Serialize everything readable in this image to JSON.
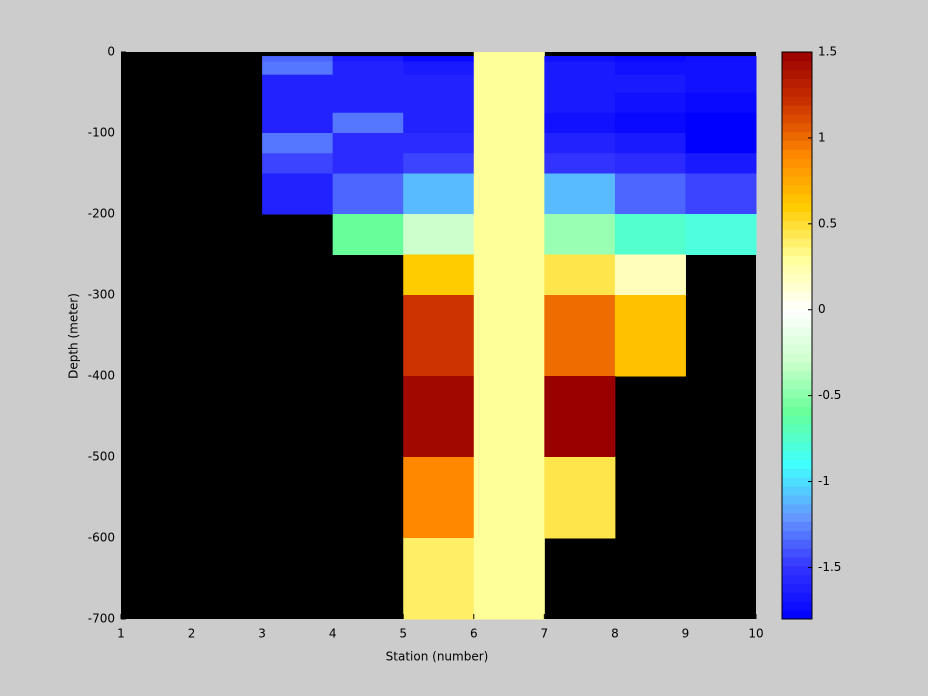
{
  "chart_data": {
    "type": "heatmap",
    "xlabel": "Station (number)",
    "ylabel": "Depth (meter)",
    "x_edges": [
      1,
      2,
      3,
      4,
      5,
      6,
      7,
      8,
      9,
      10
    ],
    "y_edges": [
      0,
      -5,
      -12,
      -28,
      -50,
      -75,
      -100,
      -125,
      -150,
      -200,
      -250,
      -300,
      -400,
      -500,
      -600,
      -700
    ],
    "z": [
      [
        null,
        null,
        null,
        null,
        null,
        0.3,
        null,
        null,
        null
      ],
      [
        null,
        null,
        -1.35,
        -1.65,
        -1.75,
        0.3,
        -1.7,
        -1.75,
        -1.7
      ],
      [
        null,
        null,
        -1.3,
        -1.6,
        -1.65,
        0.3,
        -1.65,
        -1.7,
        -1.7
      ],
      [
        null,
        null,
        -1.6,
        -1.6,
        -1.6,
        0.3,
        -1.65,
        -1.65,
        -1.7
      ],
      [
        null,
        null,
        -1.6,
        -1.6,
        -1.6,
        0.3,
        -1.65,
        -1.7,
        -1.75
      ],
      [
        null,
        null,
        -1.6,
        -1.3,
        -1.6,
        0.3,
        -1.7,
        -1.75,
        -1.8
      ],
      [
        null,
        null,
        -1.3,
        -1.55,
        -1.55,
        0.3,
        -1.6,
        -1.65,
        -1.8
      ],
      [
        null,
        null,
        -1.45,
        -1.55,
        -1.45,
        0.3,
        -1.5,
        -1.55,
        -1.65
      ],
      [
        null,
        null,
        -1.6,
        -1.35,
        -1.1,
        0.3,
        -1.1,
        -1.35,
        -1.45
      ],
      [
        null,
        null,
        null,
        -0.6,
        -0.3,
        0.3,
        -0.45,
        -0.75,
        -0.8
      ],
      [
        null,
        null,
        null,
        null,
        0.6,
        0.3,
        0.45,
        0.2,
        null
      ],
      [
        null,
        null,
        null,
        null,
        1.2,
        0.3,
        1.0,
        0.65,
        null
      ],
      [
        null,
        null,
        null,
        null,
        1.45,
        0.3,
        1.5,
        null,
        null
      ],
      [
        null,
        null,
        null,
        null,
        0.9,
        0.3,
        0.45,
        null,
        null
      ],
      [
        null,
        null,
        null,
        null,
        0.4,
        0.3,
        null,
        null,
        null
      ]
    ],
    "xlim": [
      1,
      10
    ],
    "xticks": [
      1,
      2,
      3,
      4,
      5,
      6,
      7,
      8,
      9,
      10
    ],
    "ylim": [
      -700,
      0
    ],
    "yticks": [
      0,
      -100,
      -200,
      -300,
      -400,
      -500,
      -600,
      -700
    ],
    "clim": [
      -1.8,
      1.5
    ],
    "cticks": [
      1.5,
      1,
      0.5,
      0,
      -0.5,
      -1,
      -1.5
    ],
    "colormap": [
      "#0000ff",
      "#3333ff",
      "#6699ff",
      "#40ffff",
      "#66ff99",
      "#ccffcc",
      "#ffffff",
      "#ffff99",
      "#ffcc00",
      "#ff8800",
      "#cc3300",
      "#990000"
    ],
    "background": "#000000"
  }
}
